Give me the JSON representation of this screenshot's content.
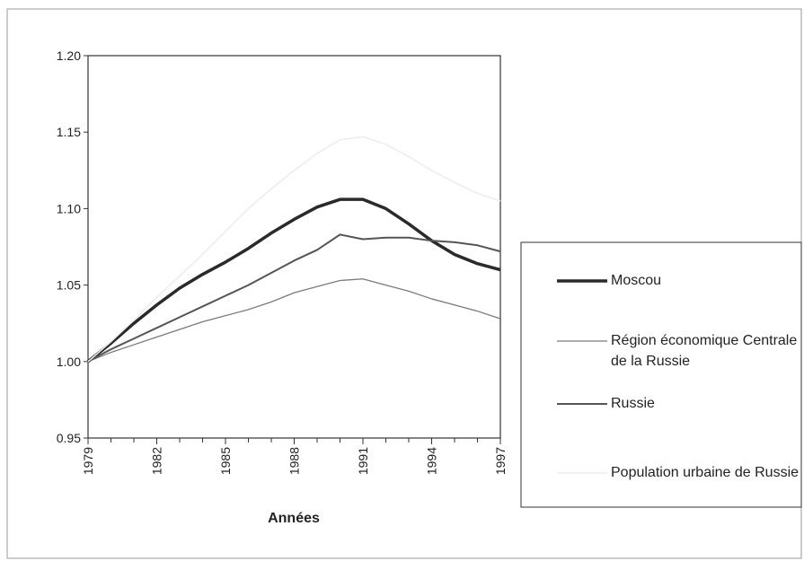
{
  "chart_data": {
    "type": "line",
    "x_label": "Années",
    "x": [
      1979,
      1980,
      1981,
      1982,
      1983,
      1984,
      1985,
      1986,
      1987,
      1988,
      1989,
      1990,
      1991,
      1992,
      1993,
      1994,
      1995,
      1996,
      1997
    ],
    "xlim": [
      1979,
      1997
    ],
    "xticks": [
      1979,
      1982,
      1985,
      1988,
      1991,
      1994,
      1997
    ],
    "ylim": [
      0.95,
      1.2
    ],
    "yticks": [
      {
        "value": 0.95,
        "label": "0.95"
      },
      {
        "value": 1.0,
        "label": "1.00"
      },
      {
        "value": 1.05,
        "label": "1.05"
      },
      {
        "value": 1.1,
        "label": "1.10"
      },
      {
        "value": 1.15,
        "label": "1.15"
      },
      {
        "value": 1.2,
        "label": "1.20"
      }
    ],
    "legend": "right",
    "series": [
      {
        "name": "Moscou",
        "color": "#2a2a2a",
        "width": 3.5,
        "values": [
          1.0,
          1.012,
          1.025,
          1.037,
          1.048,
          1.057,
          1.065,
          1.074,
          1.084,
          1.093,
          1.101,
          1.106,
          1.106,
          1.1,
          1.09,
          1.079,
          1.07,
          1.064,
          1.06
        ]
      },
      {
        "name": "Région économique Centrale de la Russie",
        "color": "#7a7a7a",
        "width": 1.3,
        "values": [
          1.0,
          1.006,
          1.011,
          1.016,
          1.021,
          1.026,
          1.03,
          1.034,
          1.039,
          1.045,
          1.049,
          1.053,
          1.054,
          1.05,
          1.046,
          1.041,
          1.037,
          1.033,
          1.028
        ]
      },
      {
        "name": "Russie",
        "color": "#555555",
        "width": 2,
        "values": [
          1.0,
          1.008,
          1.015,
          1.022,
          1.029,
          1.036,
          1.043,
          1.05,
          1.058,
          1.066,
          1.073,
          1.083,
          1.08,
          1.081,
          1.081,
          1.079,
          1.078,
          1.076,
          1.072
        ]
      },
      {
        "name": "Population urbaine de Russie",
        "color": "#ececec",
        "width": 1.5,
        "values": [
          1.0,
          1.013,
          1.027,
          1.042,
          1.056,
          1.07,
          1.085,
          1.1,
          1.113,
          1.125,
          1.136,
          1.145,
          1.147,
          1.142,
          1.134,
          1.125,
          1.117,
          1.11,
          1.105
        ]
      }
    ]
  }
}
